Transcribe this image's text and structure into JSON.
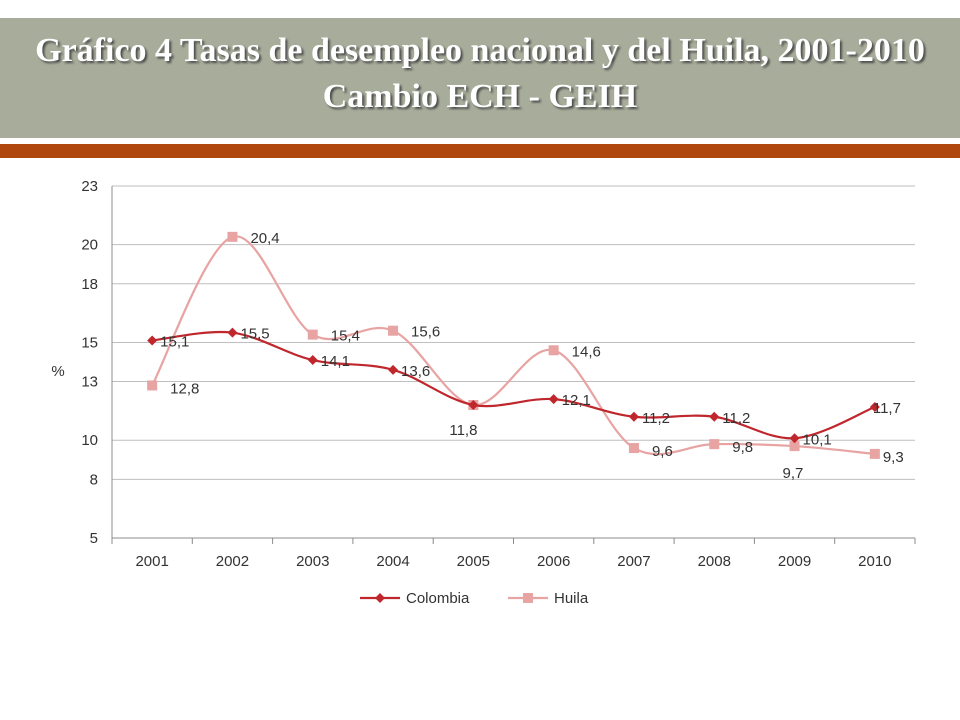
{
  "header": {
    "title_line1": "Gráfico 4 Tasas de desempleo nacional y del Huila, 2001-2010",
    "title_line2": "Cambio ECH - GEIH"
  },
  "chart_data": {
    "type": "line",
    "ylabel": "%",
    "ylim": [
      5,
      23
    ],
    "yticks": [
      5,
      8,
      10,
      13,
      15,
      18,
      20,
      23
    ],
    "grid": true,
    "legend_position": "bottom",
    "categories": [
      "2001",
      "2002",
      "2003",
      "2004",
      "2005",
      "2006",
      "2007",
      "2008",
      "2009",
      "2010"
    ],
    "series": [
      {
        "name": "Colombia",
        "color": "#c0272d",
        "marker": "diamond",
        "values": [
          15.1,
          15.5,
          14.1,
          13.6,
          11.8,
          12.1,
          11.2,
          11.2,
          10.1,
          11.7
        ],
        "labels": [
          "15,1",
          "15,5",
          "14,1",
          "13,6",
          "",
          "12,1",
          "11,2",
          "11,2",
          "10,1",
          "11,7"
        ]
      },
      {
        "name": "Huila",
        "color": "#e8a3a3",
        "marker": "square",
        "values": [
          12.8,
          20.4,
          15.4,
          15.6,
          11.8,
          14.6,
          9.6,
          9.8,
          9.7,
          9.3
        ],
        "labels": [
          "12,8",
          "20,4",
          "15,4",
          "15,6",
          "11,8",
          "14,6",
          "9,6",
          "9,8",
          "9,7",
          "9,3"
        ]
      }
    ]
  }
}
